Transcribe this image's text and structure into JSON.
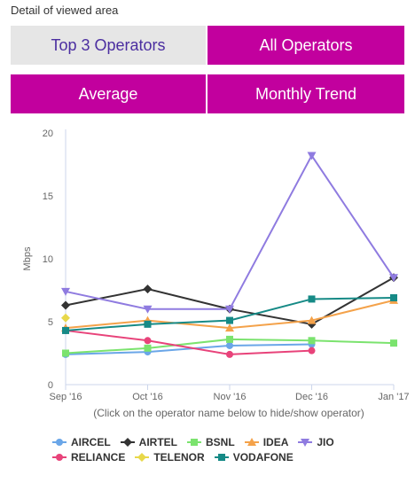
{
  "caption": "Detail of viewed area",
  "tabs": {
    "top3": "Top 3 Operators",
    "all": "All Operators",
    "average": "Average",
    "trend": "Monthly Trend"
  },
  "chart_data": {
    "type": "line",
    "title": "",
    "xlabel": "(Click on the operator name below to hide/show operator)",
    "ylabel": "Mbps",
    "categories": [
      "Sep '16",
      "Oct '16",
      "Nov '16",
      "Dec '16",
      "Jan '17"
    ],
    "ylim": [
      0,
      20
    ],
    "yticks": [
      0,
      5,
      10,
      15,
      20
    ],
    "grid": false,
    "legend": "bottom",
    "series": [
      {
        "name": "AIRCEL",
        "color": "#6aa6e8",
        "marker": "circle",
        "values": [
          2.4,
          2.6,
          3.1,
          3.2,
          null
        ]
      },
      {
        "name": "AIRTEL",
        "color": "#333333",
        "marker": "diamond",
        "values": [
          6.3,
          7.6,
          6.0,
          4.8,
          8.5
        ]
      },
      {
        "name": "BSNL",
        "color": "#7be36e",
        "marker": "square",
        "values": [
          2.5,
          2.9,
          3.6,
          3.5,
          3.3
        ]
      },
      {
        "name": "IDEA",
        "color": "#f4a24a",
        "marker": "triangle",
        "values": [
          4.5,
          5.1,
          4.5,
          5.1,
          6.7
        ]
      },
      {
        "name": "JIO",
        "color": "#8f7be0",
        "marker": "triangle-down",
        "values": [
          7.4,
          6.0,
          6.0,
          18.2,
          8.5
        ]
      },
      {
        "name": "RELIANCE",
        "color": "#e8437a",
        "marker": "circle",
        "values": [
          4.3,
          3.5,
          2.4,
          2.7,
          null
        ]
      },
      {
        "name": "TELENOR",
        "color": "#e8d84a",
        "marker": "diamond",
        "values": [
          5.3,
          null,
          null,
          null,
          null
        ]
      },
      {
        "name": "VODAFONE",
        "color": "#168a86",
        "marker": "square",
        "values": [
          4.3,
          4.8,
          5.1,
          6.8,
          6.9
        ]
      }
    ]
  }
}
